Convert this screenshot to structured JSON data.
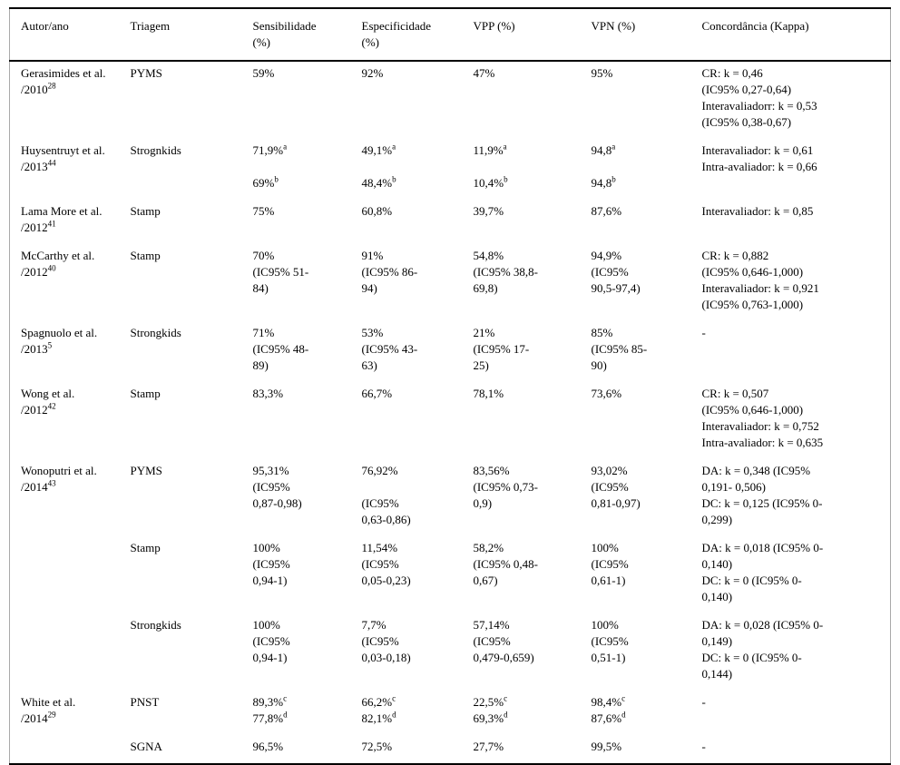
{
  "page": {
    "background": "#ffffff",
    "text_color": "#000000",
    "rule_color": "#000000"
  },
  "table": {
    "columns": [
      "Autor/ano",
      "Triagem",
      "Sensibilidade\n(%)",
      "Especificidade\n(%)",
      "VPP (%)",
      "VPN (%)",
      "Concordância (Kappa)"
    ],
    "groups": [
      {
        "autor": "Gerasimides et al.\n/2010^{28}",
        "subrows": [
          {
            "triagem": "PYMS",
            "sensibilidade": "59%",
            "especificidade": "92%",
            "vpp": "47%",
            "vpn": "95%",
            "kappa": "CR: k = 0,46\n(IC95% 0,27-0,64)\nInteravaliadorr: k = 0,53\n(IC95% 0,38-0,67)"
          }
        ]
      },
      {
        "autor": "Huysentruyt et al.\n/2013^{44}",
        "subrows": [
          {
            "triagem": "Strognkids",
            "sensibilidade": "71,9%^{a}\n\n69%^{b}",
            "especificidade": "49,1%^{a}\n\n48,4%^{b}",
            "vpp": "11,9%^{a}\n\n10,4%^{b}",
            "vpn": "94,8^{a}\n\n94,8^{b}",
            "kappa": "Interavaliador: k = 0,61\nIntra-avaliador: k = 0,66"
          }
        ]
      },
      {
        "autor": "Lama More et al.\n/2012^{41}",
        "subrows": [
          {
            "triagem": "Stamp",
            "sensibilidade": "75%",
            "especificidade": "60,8%",
            "vpp": "39,7%",
            "vpn": "87,6%",
            "kappa": "Interavaliador: k = 0,85"
          }
        ]
      },
      {
        "autor": "McCarthy et al.\n/2012^{40}",
        "subrows": [
          {
            "triagem": "Stamp",
            "sensibilidade": "70%\n(IC95% 51-\n84)",
            "especificidade": "91%\n(IC95% 86-\n94)",
            "vpp": "54,8%\n(IC95% 38,8-\n69,8)",
            "vpn": "94,9%\n(IC95%\n90,5-97,4)",
            "kappa": "CR: k = 0,882\n(IC95% 0,646-1,000)\nInteravaliador: k = 0,921\n(IC95% 0,763-1,000)"
          }
        ]
      },
      {
        "autor": "Spagnuolo et al.\n/2013^{5}",
        "subrows": [
          {
            "triagem": "Strongkids",
            "sensibilidade": "71%\n(IC95% 48-\n89)",
            "especificidade": "53%\n(IC95% 43-\n63)",
            "vpp": "21%\n(IC95% 17-\n25)",
            "vpn": "85%\n(IC95% 85-\n90)",
            "kappa": "-"
          }
        ]
      },
      {
        "autor": "Wong et al.\n/2012^{42}",
        "subrows": [
          {
            "triagem": "Stamp",
            "sensibilidade": "83,3%",
            "especificidade": "66,7%",
            "vpp": "78,1%",
            "vpn": "73,6%",
            "kappa": "CR: k = 0,507\n(IC95% 0,646-1,000)\nInteravaliador: k = 0,752\nIntra-avaliador: k = 0,635"
          }
        ]
      },
      {
        "autor": "Wonoputri et al.\n/2014^{43}",
        "subrows": [
          {
            "triagem": "PYMS",
            "sensibilidade": "95,31%\n(IC95%\n0,87-0,98)",
            "especificidade": "76,92%\n\n(IC95%\n0,63-0,86)",
            "vpp": "83,56%\n(IC95% 0,73-\n0,9)",
            "vpn": "93,02%\n(IC95%\n0,81-0,97)",
            "kappa": "DA: k = 0,348 (IC95%\n0,191- 0,506)\nDC: k = 0,125 (IC95% 0-\n0,299)"
          },
          {
            "triagem": "Stamp",
            "sensibilidade": "100%\n(IC95%\n0,94-1)",
            "especificidade": "11,54%\n(IC95%\n0,05-0,23)",
            "vpp": "58,2%\n(IC95% 0,48-\n0,67)",
            "vpn": "100%\n(IC95%\n0,61-1)",
            "kappa": "DA: k = 0,018 (IC95% 0-\n0,140)\nDC: k = 0 (IC95% 0-\n0,140)"
          },
          {
            "triagem": "Strongkids",
            "sensibilidade": "100%\n(IC95%\n0,94-1)",
            "especificidade": "7,7%\n(IC95%\n0,03-0,18)",
            "vpp": "57,14%\n(IC95%\n0,479-0,659)",
            "vpn": "100%\n(IC95%\n0,51-1)",
            "kappa": "DA: k = 0,028 (IC95% 0-\n0,149)\nDC: k = 0 (IC95% 0-\n0,144)"
          }
        ]
      },
      {
        "autor": "White et al.\n/2014^{29}",
        "subrows": [
          {
            "triagem": "PNST",
            "sensibilidade": "89,3%^{c}\n77,8%^{d}",
            "especificidade": "66,2%^{c}\n82,1%^{d}",
            "vpp": "22,5%^{c}\n69,3%^{d}",
            "vpn": "98,4%^{c}\n87,6%^{d}",
            "kappa": "-"
          },
          {
            "triagem": "SGNA",
            "sensibilidade": "96,5%",
            "especificidade": "72,5%",
            "vpp": "27,7%",
            "vpn": "99,5%",
            "kappa": "-"
          }
        ]
      }
    ]
  }
}
